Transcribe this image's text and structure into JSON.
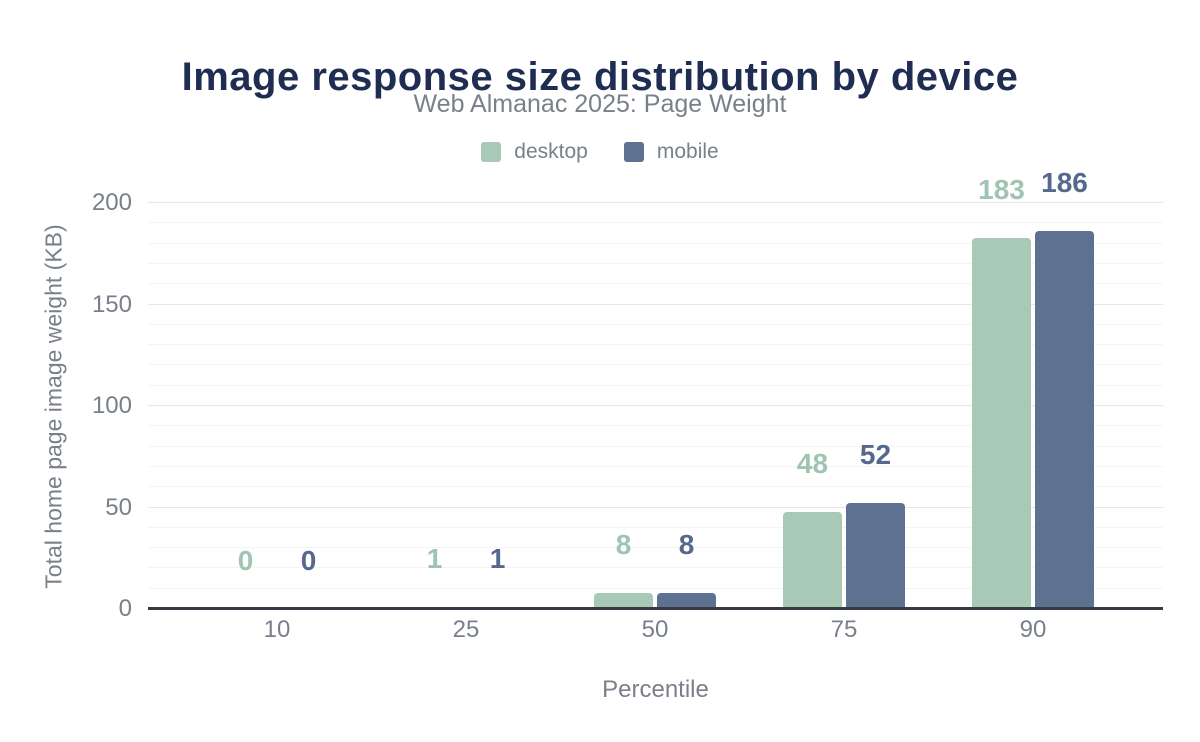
{
  "chart_data": {
    "type": "bar",
    "title": "Image response size distribution by device",
    "subtitle": "Web Almanac 2025: Page Weight",
    "categories": [
      "10",
      "25",
      "50",
      "75",
      "90"
    ],
    "series": [
      {
        "name": "desktop",
        "values": [
          0,
          1,
          8,
          48,
          183
        ],
        "color": "#a8c9b6",
        "label_color": "#9fc4b1"
      },
      {
        "name": "mobile",
        "values": [
          0,
          1,
          8,
          52,
          186
        ],
        "color": "#5e7190",
        "label_color": "#56688b"
      }
    ],
    "xlabel": "Percentile",
    "ylabel": "Total home page image weight (KB)",
    "ylim": [
      0,
      200
    ],
    "yticks": [
      0,
      50,
      100,
      150,
      200
    ],
    "minor_grid_step": 10,
    "grid": true,
    "legend_position": "top-center",
    "data_labels": true
  },
  "colors": {
    "desktop": "#a8c9b6",
    "mobile": "#5e7190",
    "title": "#202d52",
    "muted_text": "#7a8089",
    "axis_line": "#343b45",
    "grid_major": "#e6e7e8",
    "grid_minor": "#f4f4f5",
    "background": "#ffffff"
  }
}
